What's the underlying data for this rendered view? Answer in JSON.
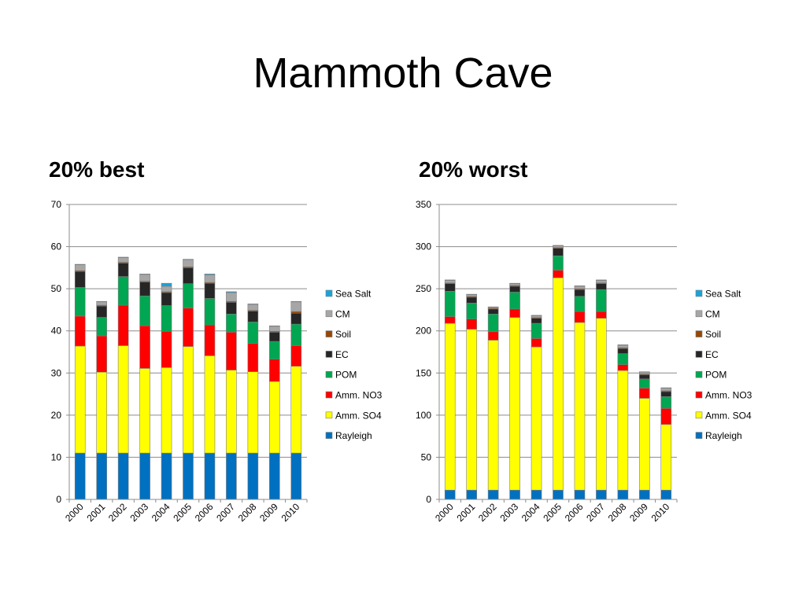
{
  "page": {
    "title": "Mammoth Cave"
  },
  "colors": {
    "Rayleigh": "#0070c0",
    "Amm. SO4": "#ffff00",
    "Amm. NO3": "#ff0000",
    "POM": "#00a651",
    "EC": "#262626",
    "Soil": "#974706",
    "CM": "#a6a6a6",
    "Sea Salt": "#1aa3d9"
  },
  "chart_data": [
    {
      "type": "bar",
      "stacked": true,
      "title": "20% best",
      "xlabel": "",
      "ylabel": "",
      "categories": [
        "2000",
        "2001",
        "2002",
        "2003",
        "2004",
        "2005",
        "2006",
        "2007",
        "2008",
        "2009",
        "2010"
      ],
      "ylim": [
        0,
        70
      ],
      "yticks": [
        0,
        10,
        20,
        30,
        40,
        50,
        60,
        70
      ],
      "legend_position": "right",
      "grid": true,
      "series": [
        {
          "name": "Rayleigh",
          "values": [
            11,
            11,
            11,
            11,
            11,
            11,
            11,
            11,
            11,
            11,
            11
          ]
        },
        {
          "name": "Amm. SO4",
          "values": [
            25.4,
            19.2,
            25.5,
            20.1,
            20.3,
            25.3,
            23.1,
            19.7,
            19.3,
            17.0,
            20.6
          ]
        },
        {
          "name": "Amm. NO3",
          "values": [
            7.1,
            8.6,
            9.6,
            10.1,
            8.6,
            9.1,
            7.3,
            9.0,
            6.7,
            5.3,
            4.9
          ]
        },
        {
          "name": "POM",
          "values": [
            6.8,
            4.4,
            6.8,
            7.1,
            6.1,
            5.8,
            6.3,
            4.3,
            5.1,
            4.2,
            5.1
          ]
        },
        {
          "name": "EC",
          "values": [
            3.8,
            2.7,
            3.2,
            3.3,
            3.1,
            3.8,
            3.6,
            2.8,
            2.6,
            2.2,
            2.6
          ]
        },
        {
          "name": "Soil",
          "values": [
            0.2,
            0.2,
            0.2,
            0.2,
            0.2,
            0.2,
            0.2,
            0.2,
            0.2,
            0.2,
            0.4
          ]
        },
        {
          "name": "CM",
          "values": [
            1.4,
            0.8,
            1.1,
            1.6,
            1.3,
            1.7,
            1.8,
            2.1,
            1.4,
            1.2,
            2.3
          ]
        },
        {
          "name": "Sea Salt",
          "values": [
            0.1,
            0.1,
            0.1,
            0.1,
            0.7,
            0.1,
            0.2,
            0.2,
            0.1,
            0.1,
            0.1
          ]
        }
      ]
    },
    {
      "type": "bar",
      "stacked": true,
      "title": "20% worst",
      "xlabel": "",
      "ylabel": "",
      "categories": [
        "2000",
        "2001",
        "2002",
        "2003",
        "2004",
        "2005",
        "2006",
        "2007",
        "2008",
        "2009",
        "2010"
      ],
      "ylim": [
        0,
        350
      ],
      "yticks": [
        0,
        50,
        100,
        150,
        200,
        250,
        300,
        350
      ],
      "legend_position": "right",
      "grid": true,
      "series": [
        {
          "name": "Rayleigh",
          "values": [
            11,
            11,
            11,
            11,
            11,
            11,
            11,
            11,
            11,
            11,
            11
          ]
        },
        {
          "name": "Amm. SO4",
          "values": [
            198,
            191,
            178,
            205,
            170,
            252,
            199,
            204,
            142,
            109,
            78
          ]
        },
        {
          "name": "Amm. NO3",
          "values": [
            8,
            12,
            10,
            10,
            10,
            9,
            13,
            8,
            7,
            12,
            19
          ]
        },
        {
          "name": "POM",
          "values": [
            30,
            19,
            21,
            20,
            18,
            17,
            18,
            26,
            13,
            11,
            14
          ]
        },
        {
          "name": "EC",
          "values": [
            9,
            7,
            6,
            7,
            6,
            9,
            8,
            7,
            6,
            5,
            6
          ]
        },
        {
          "name": "Soil",
          "values": [
            1,
            1,
            1,
            1,
            1,
            1,
            1,
            1,
            1,
            1,
            1
          ]
        },
        {
          "name": "CM",
          "values": [
            3,
            2,
            1,
            2,
            2,
            2,
            3,
            3,
            3,
            2,
            3
          ]
        },
        {
          "name": "Sea Salt",
          "values": [
            0.5,
            0.5,
            0.5,
            0.5,
            0.5,
            0.5,
            0.5,
            0.5,
            0.5,
            0.5,
            0.5
          ]
        }
      ]
    }
  ]
}
